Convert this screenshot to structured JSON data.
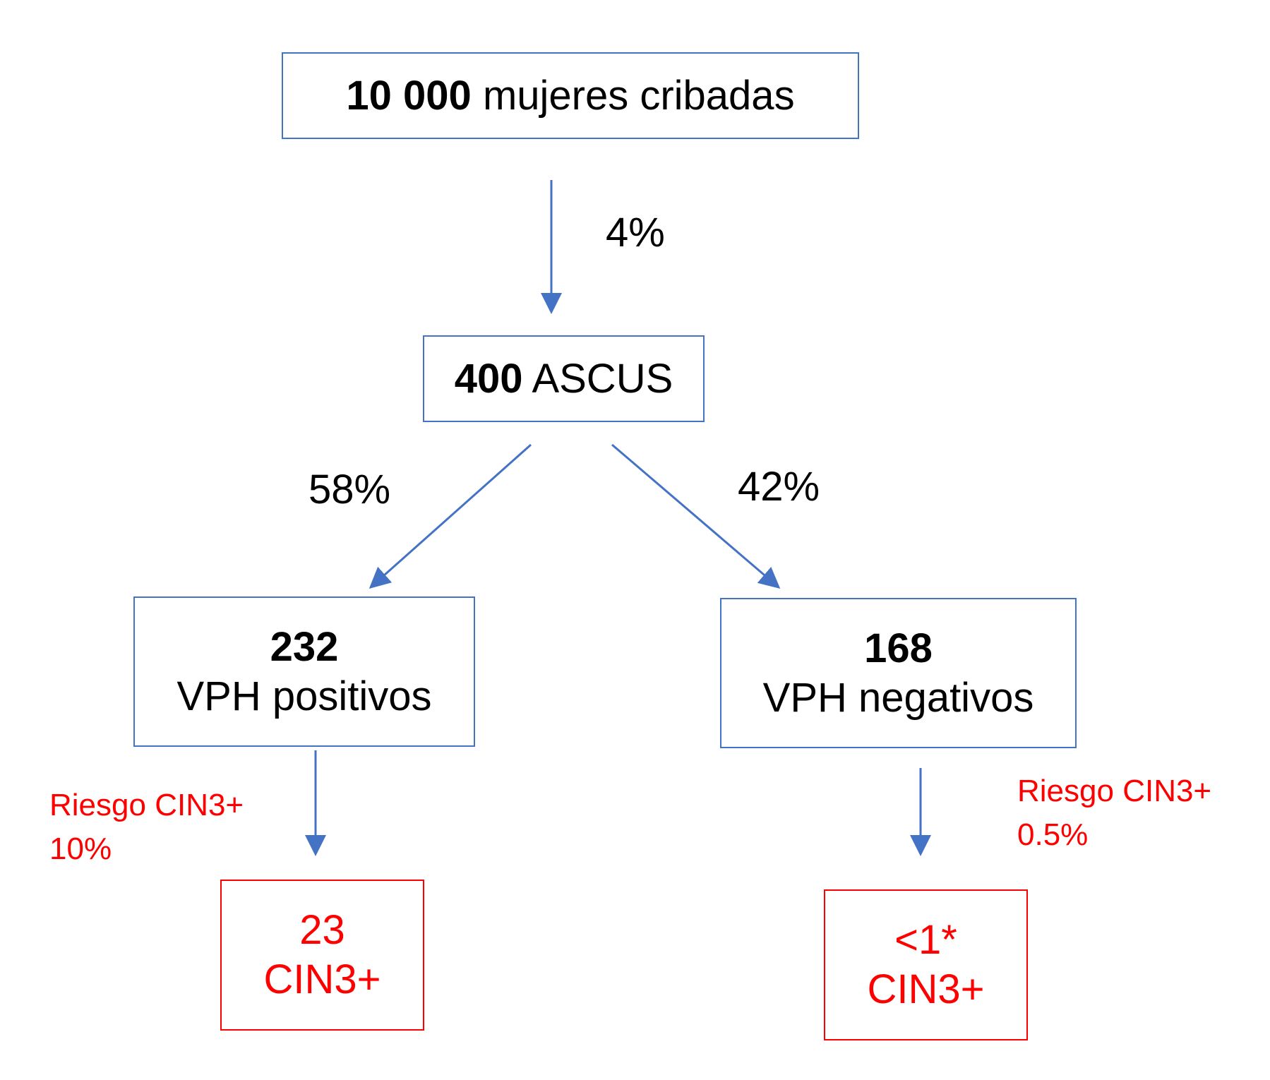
{
  "root": {
    "number": "10 000",
    "label": "mujeres cribadas"
  },
  "edge_root": {
    "percent": "4%"
  },
  "ascus": {
    "number": "400",
    "label": "ASCUS"
  },
  "edge_left": {
    "percent": "58%"
  },
  "edge_right": {
    "percent": "42%"
  },
  "hpv_positive": {
    "number": "232",
    "label": "VPH positivos"
  },
  "hpv_negative": {
    "number": "168",
    "label": "VPH negativos"
  },
  "risk_left": {
    "title": "Riesgo CIN3+",
    "value": "10%"
  },
  "risk_right": {
    "title": "Riesgo CIN3+",
    "value": "0.5%"
  },
  "result_left": {
    "value": "23",
    "label": "CIN3+"
  },
  "result_right": {
    "value": "<1*",
    "label": "CIN3+"
  },
  "colors": {
    "arrow": "#4472C4",
    "node_border": "#4472C4",
    "highlight": "#FF0000",
    "text": "#000000"
  }
}
